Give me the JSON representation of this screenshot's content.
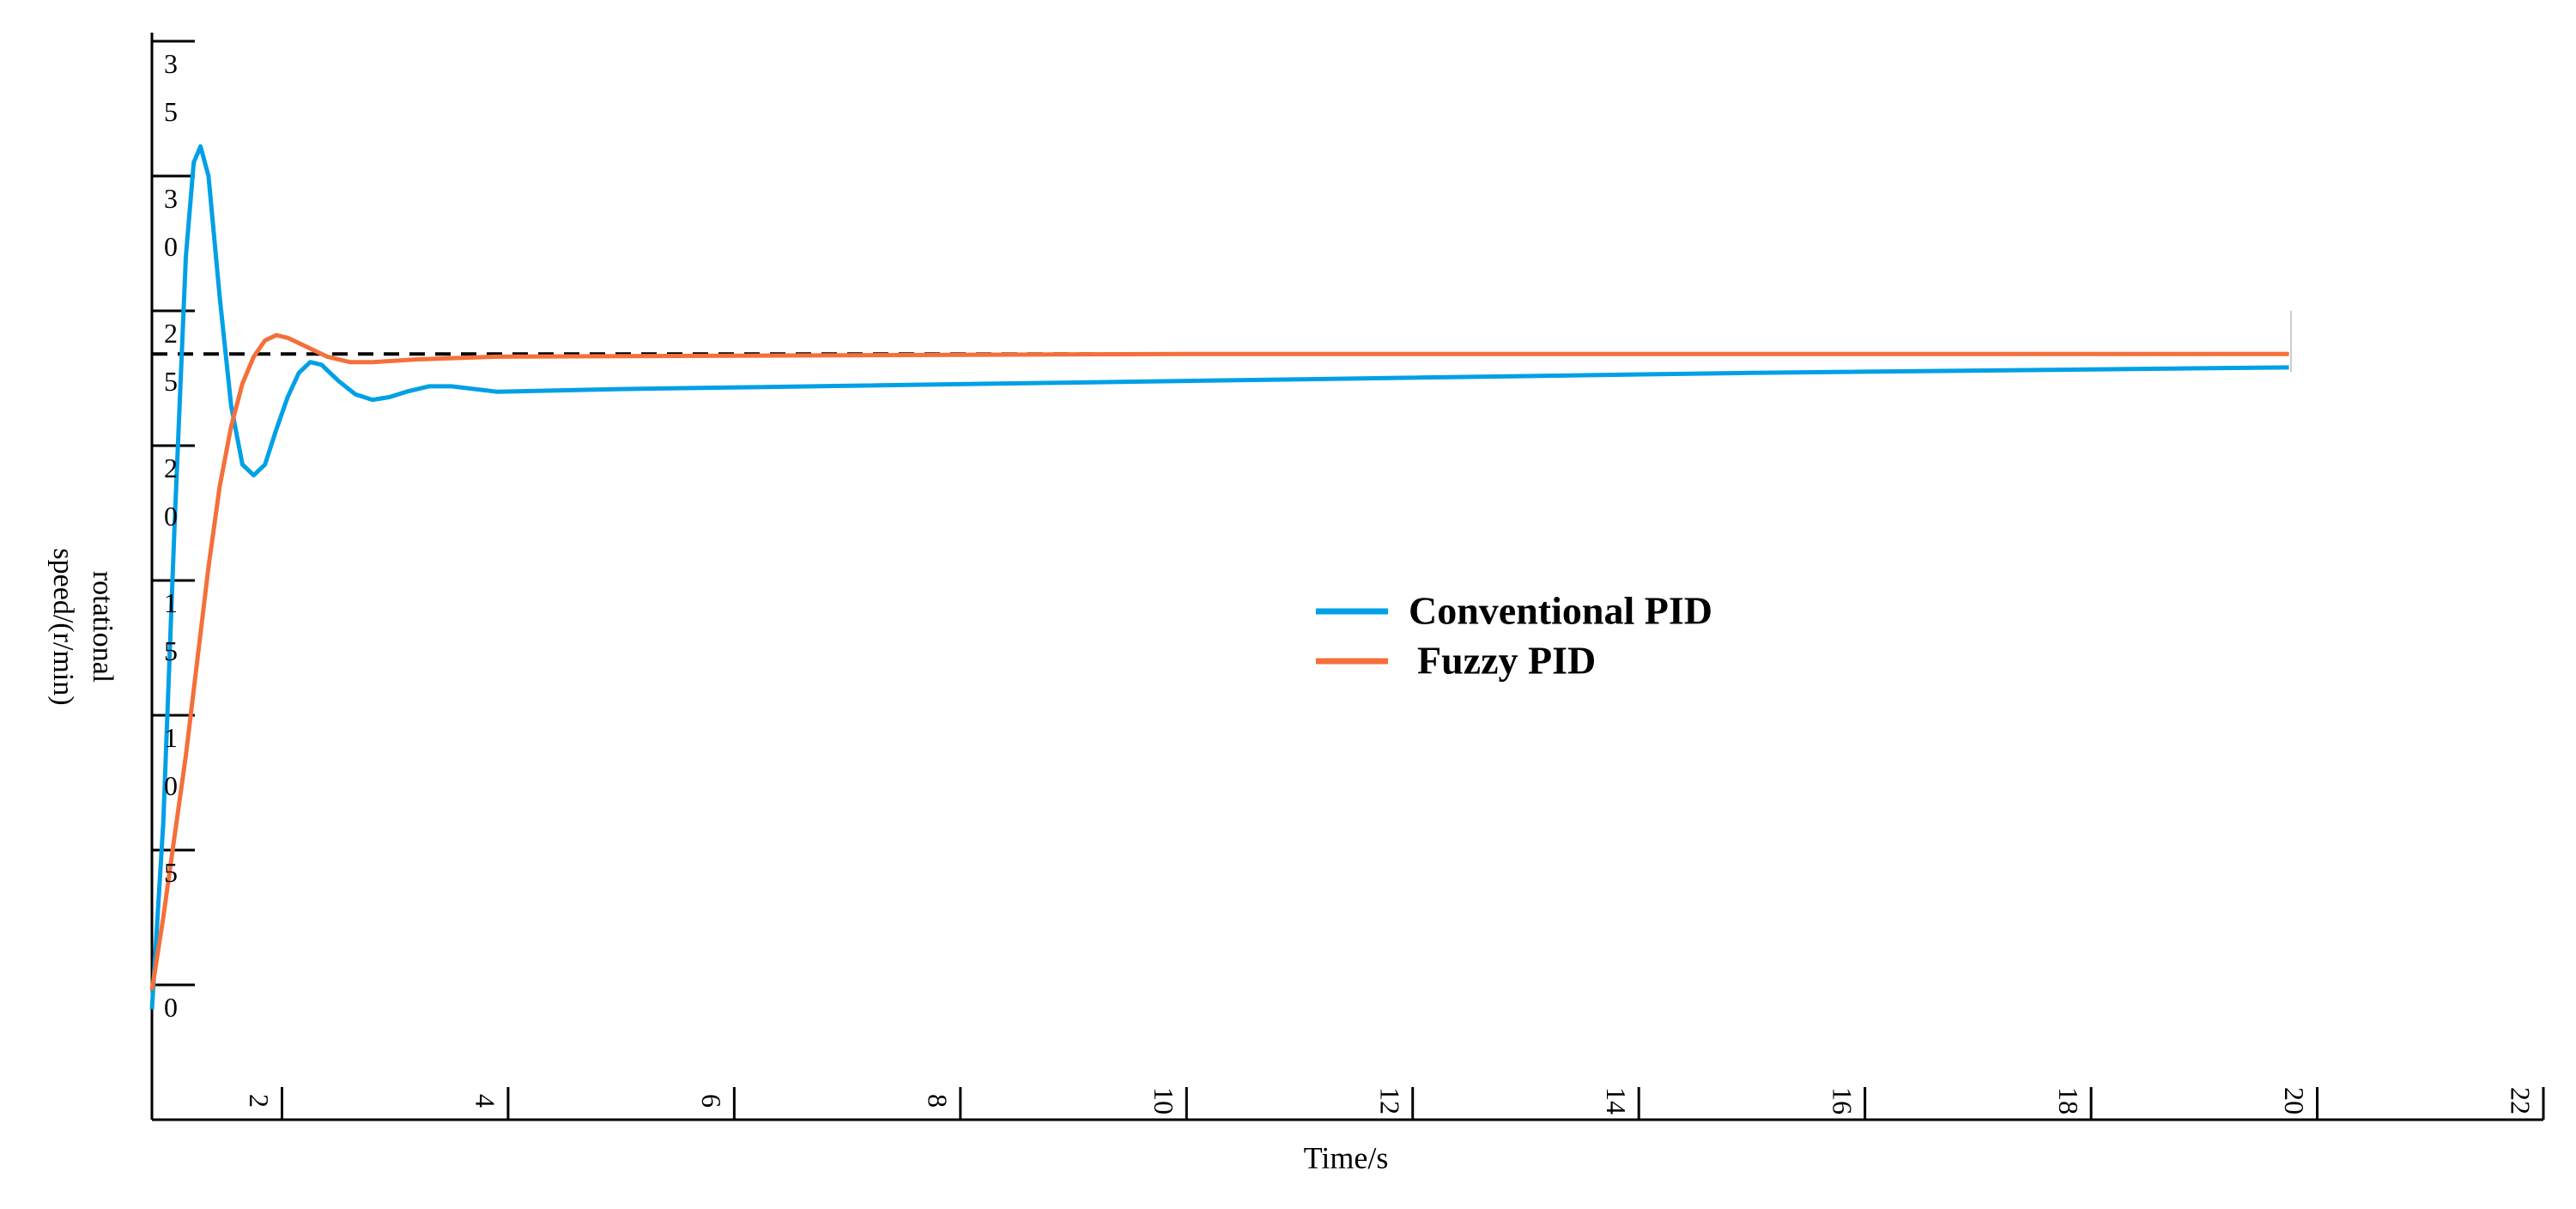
{
  "chart_data": {
    "type": "line",
    "x_label": "Time/s",
    "y_label": "rotational speed/(r/min)",
    "xlim": [
      0.85,
      22
    ],
    "ylim": [
      -5,
      35
    ],
    "xticks": [
      2,
      4,
      6,
      8,
      10,
      12,
      14,
      16,
      18,
      20,
      22
    ],
    "yticks": [
      0,
      5,
      10,
      15,
      20,
      25,
      30,
      35
    ],
    "legend": "center",
    "series": [
      {
        "name": "Conventional PID",
        "color": "#00a0e6",
        "x": [
          0.85,
          0.95,
          1.05,
          1.15,
          1.22,
          1.28,
          1.35,
          1.45,
          1.55,
          1.65,
          1.75,
          1.85,
          1.95,
          2.05,
          2.15,
          2.25,
          2.35,
          2.5,
          2.65,
          2.8,
          2.95,
          3.1,
          3.3,
          3.5,
          3.9,
          5,
          10,
          15,
          19.75
        ],
        "values": [
          -0.9,
          6,
          17,
          27,
          30.5,
          31.1,
          30,
          25.5,
          21.5,
          19.3,
          18.9,
          19.3,
          20.6,
          21.8,
          22.7,
          23.1,
          23.0,
          22.4,
          21.9,
          21.7,
          21.8,
          22.0,
          22.2,
          22.2,
          22.0,
          22.1,
          22.4,
          22.7,
          22.9
        ]
      },
      {
        "name": "Fuzzy PID",
        "color": "#f4703a",
        "x": [
          0.85,
          0.95,
          1.05,
          1.15,
          1.25,
          1.35,
          1.45,
          1.55,
          1.65,
          1.75,
          1.85,
          1.95,
          2.05,
          2.2,
          2.4,
          2.6,
          2.8,
          3.2,
          3.9,
          10,
          19.75
        ],
        "values": [
          -0.2,
          2.5,
          5.5,
          8.5,
          12,
          15.5,
          18.5,
          20.7,
          22.3,
          23.3,
          23.9,
          24.1,
          24.0,
          23.7,
          23.3,
          23.1,
          23.1,
          23.2,
          23.3,
          23.4,
          23.4
        ]
      }
    ],
    "reference": {
      "x": [
        0.85,
        10.3
      ],
      "values": [
        23.4,
        23.4
      ],
      "color": "#000000",
      "dashed": true
    }
  }
}
